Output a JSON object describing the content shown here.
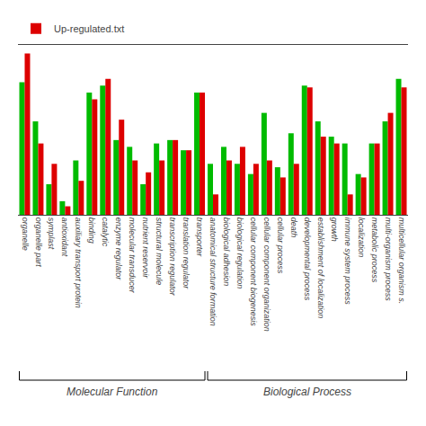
{
  "chart_data": {
    "type": "bar",
    "categories": [
      "organelle",
      "organelle part",
      "symplast",
      "antioxidant",
      "auxiliary transport protein",
      "binding",
      "catalytic",
      "enzyme regulator",
      "molecular transducer",
      "nutrient reservoir",
      "structural molecule",
      "transcription regulator",
      "translation regulator",
      "transporter",
      "anatomical structure formation",
      "biological adhesion",
      "biological regulation",
      "cellular component biogenesis",
      "cellular component organization",
      "cellular process",
      "death",
      "developmental process",
      "establishment of localization",
      "growth",
      "immune system process",
      "localization",
      "metabolic process",
      "multi-organism process",
      "multicellular organism s."
    ],
    "series": [
      {
        "color": "#00bb00",
        "values": [
          78,
          55,
          18,
          8,
          32,
          72,
          76,
          44,
          40,
          18,
          42,
          44,
          38,
          72,
          30,
          40,
          30,
          24,
          60,
          28,
          48,
          76,
          55,
          46,
          42,
          24,
          42,
          55,
          80
        ]
      },
      {
        "name": "Up-regulated.txt",
        "color": "#dd0000",
        "values": [
          95,
          42,
          30,
          5,
          20,
          68,
          80,
          56,
          32,
          25,
          32,
          44,
          38,
          72,
          12,
          32,
          40,
          30,
          32,
          22,
          30,
          75,
          46,
          42,
          12,
          22,
          42,
          60,
          75
        ]
      }
    ],
    "ylim": [
      0,
      100
    ],
    "yticks": [],
    "tick_labels": "x",
    "grid": false,
    "legend": "top left",
    "groups": [
      {
        "label": "Molecular Function",
        "count": 14
      },
      {
        "label": "Biological Process",
        "count": 15
      }
    ]
  }
}
